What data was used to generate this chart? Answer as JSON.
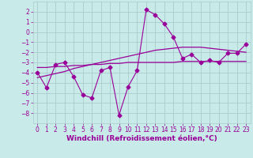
{
  "xlabel": "Windchill (Refroidissement éolien,°C)",
  "x_values": [
    0,
    1,
    2,
    3,
    4,
    5,
    6,
    7,
    8,
    9,
    10,
    11,
    12,
    13,
    14,
    15,
    16,
    17,
    18,
    19,
    20,
    21,
    22,
    23
  ],
  "main_line": [
    -4.0,
    -5.5,
    -3.2,
    -3.0,
    -4.4,
    -6.2,
    -6.5,
    -3.8,
    -3.5,
    -8.2,
    -5.4,
    -3.8,
    2.2,
    1.7,
    0.8,
    -0.5,
    -2.6,
    -2.2,
    -3.0,
    -2.8,
    -3.0,
    -2.1,
    -2.1,
    -1.2
  ],
  "trend_line1": [
    -3.5,
    -3.5,
    -3.4,
    -3.4,
    -3.3,
    -3.3,
    -3.2,
    -3.2,
    -3.1,
    -3.1,
    -3.0,
    -3.0,
    -3.0,
    -3.0,
    -3.0,
    -3.0,
    -2.9,
    -2.9,
    -2.9,
    -2.9,
    -2.9,
    -2.9,
    -2.9,
    -2.9
  ],
  "trend_line2": [
    -4.5,
    -4.3,
    -4.1,
    -3.9,
    -3.6,
    -3.4,
    -3.2,
    -3.0,
    -2.8,
    -2.6,
    -2.4,
    -2.2,
    -2.0,
    -1.8,
    -1.7,
    -1.6,
    -1.5,
    -1.5,
    -1.5,
    -1.6,
    -1.7,
    -1.8,
    -1.9,
    -2.0
  ],
  "bg_color": "#c8eae8",
  "grid_color": "#aacccc",
  "line_color": "#990099",
  "marker": "D",
  "marker_size": 2.5,
  "xlim": [
    -0.5,
    23.5
  ],
  "ylim": [
    -9,
    3
  ],
  "yticks": [
    2,
    1,
    0,
    -1,
    -2,
    -3,
    -4,
    -5,
    -6,
    -7,
    -8
  ],
  "xticks": [
    0,
    1,
    2,
    3,
    4,
    5,
    6,
    7,
    8,
    9,
    10,
    11,
    12,
    13,
    14,
    15,
    16,
    17,
    18,
    19,
    20,
    21,
    22,
    23
  ],
  "tick_fontsize": 5.5,
  "label_fontsize": 6.5
}
